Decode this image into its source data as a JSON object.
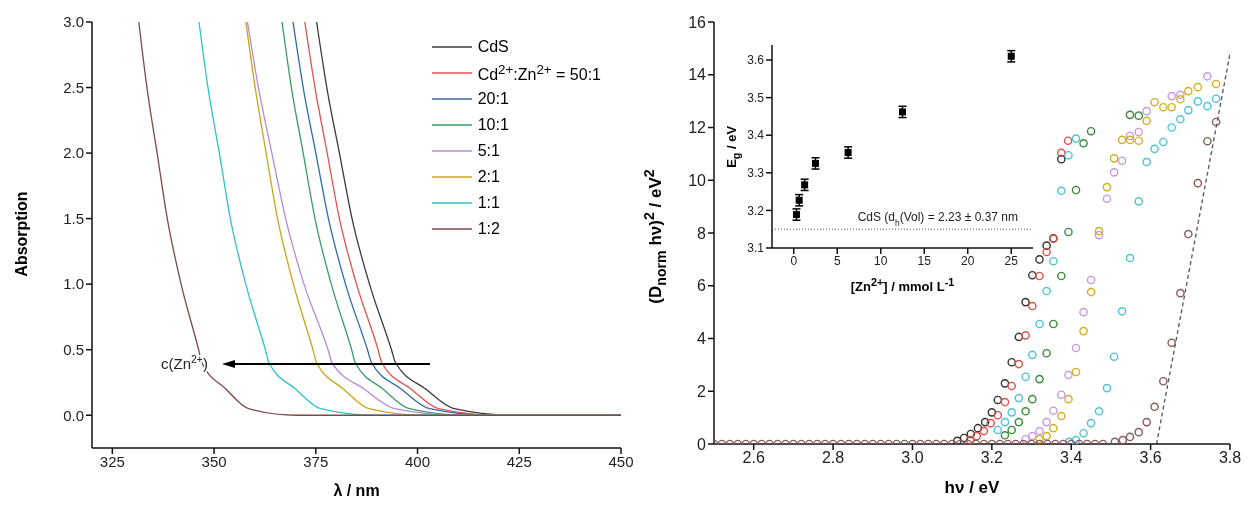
{
  "chart_data": [
    {
      "type": "line",
      "xlabel": "λ / nm",
      "ylabel": "Absorption",
      "xlim": [
        320,
        450
      ],
      "ylim": [
        -0.25,
        3.0
      ],
      "xticks": [
        325,
        350,
        375,
        400,
        425,
        450
      ],
      "yticks": [
        {
          "value": 0,
          "label": "0.0"
        },
        0.5,
        {
          "value": 1,
          "label": "1.0"
        },
        1.5,
        {
          "value": 2,
          "label": "2.0"
        },
        2.5,
        {
          "value": 3,
          "label": "3.0"
        }
      ],
      "legend": "top right",
      "annotations": [
        "c(Zn$^{2+}$)"
      ],
      "series": [
        {
          "name": "CdS",
          "color": "#3a3a3a",
          "x": [
            375.2,
            377.7,
            380.8,
            383.9,
            388.2,
            393.6,
            394.6,
            402.0,
            409.0,
            423.7,
            450
          ],
          "values": [
            3,
            2.5,
            2,
            1.5,
            1,
            0.5,
            0.4,
            0.2,
            0.05,
            0,
            0
          ]
        },
        {
          "name": "Cd$^{2+}$:Zn$^{2+}$ = 50:1",
          "color": "#e0524f",
          "x": [
            372.3,
            374.8,
            377.8,
            380.8,
            385.0,
            390.3,
            391.2,
            398.4,
            405.2,
            419.6,
            450
          ],
          "values": [
            3,
            2.5,
            2,
            1.5,
            1,
            0.5,
            0.4,
            0.2,
            0.05,
            0,
            0
          ]
        },
        {
          "name": "20:1",
          "color": "#2e6aa8",
          "x": [
            369.4,
            371.9,
            375.0,
            378.1,
            382.3,
            387.7,
            388.7,
            396.0,
            403.0,
            417.7,
            450
          ],
          "values": [
            3,
            2.5,
            2,
            1.5,
            1,
            0.5,
            0.4,
            0.2,
            0.05,
            0,
            0
          ]
        },
        {
          "name": "10:1",
          "color": "#3a9a6a",
          "x": [
            366.7,
            369.0,
            371.9,
            374.8,
            378.8,
            383.8,
            384.7,
            391.5,
            398.0,
            411.7,
            450
          ],
          "values": [
            3,
            2.5,
            2,
            1.5,
            1,
            0.5,
            0.4,
            0.2,
            0.05,
            0,
            0
          ]
        },
        {
          "name": "5:1",
          "color": "#b58bd8",
          "x": [
            358.2,
            360.9,
            364.2,
            367.6,
            372.1,
            378.0,
            379.0,
            386.9,
            394.4,
            410.2,
            450
          ],
          "values": [
            3,
            2.5,
            2,
            1.5,
            1,
            0.5,
            0.4,
            0.2,
            0.05,
            0,
            0
          ]
        },
        {
          "name": "2:1",
          "color": "#c9a516",
          "x": [
            357.8,
            360.1,
            362.8,
            365.6,
            369.5,
            374.3,
            375.2,
            381.8,
            388.1,
            401.3,
            450
          ],
          "values": [
            3,
            2.5,
            2,
            1.5,
            1,
            0.5,
            0.4,
            0.2,
            0.05,
            0,
            0
          ]
        },
        {
          "name": "1:1",
          "color": "#2cc3c8",
          "x": [
            346.3,
            348.5,
            351.3,
            354.0,
            357.8,
            362.6,
            363.5,
            370.0,
            376.2,
            389.3,
            450
          ],
          "values": [
            3,
            2.5,
            2,
            1.5,
            1,
            0.5,
            0.4,
            0.2,
            0.05,
            0,
            0
          ]
        },
        {
          "name": "1:2",
          "color": "#7a4a4a",
          "x": [
            331.5,
            333.5,
            336.0,
            338.5,
            341.9,
            346.2,
            347.0,
            352.9,
            358.5,
            370.3,
            450
          ],
          "values": [
            3,
            2.5,
            2,
            1.5,
            1,
            0.5,
            0.4,
            0.2,
            0.05,
            0,
            0
          ]
        }
      ]
    },
    {
      "type": "scatter",
      "xlabel": "hν / eV",
      "ylabel": "(D$_{norm}$ hν)$^{2}$ / eV$^{2}$",
      "xlim": [
        2.5,
        3.8
      ],
      "ylim": [
        0,
        16
      ],
      "xticks": [
        2.6,
        2.8,
        {
          "value": 3,
          "label": "3.0"
        },
        3.2,
        3.4,
        3.6,
        3.8
      ],
      "yticks": [
        0,
        2,
        4,
        6,
        8,
        10,
        12,
        14,
        16
      ],
      "marker": "circle",
      "series": [
        {
          "color": "#333333",
          "x": [
            3.113,
            3.13,
            3.147,
            3.165,
            3.183,
            3.2,
            3.215,
            3.233,
            3.25,
            3.268,
            3.285,
            3.302,
            3.32,
            3.338,
            3.355,
            3.375
          ],
          "values": [
            0.12,
            0.23,
            0.38,
            0.6,
            0.83,
            1.2,
            1.67,
            2.3,
            3.1,
            4.06,
            5.38,
            6.4,
            7.0,
            7.52,
            7.8,
            10.8
          ]
        },
        {
          "color": "#d9534f",
          "x": [
            3.145,
            3.162,
            3.18,
            3.197,
            3.215,
            3.233,
            3.25,
            3.268,
            3.285,
            3.302,
            3.32,
            3.338,
            3.355,
            3.375,
            3.392
          ],
          "values": [
            0.15,
            0.3,
            0.49,
            0.79,
            1.09,
            1.59,
            2.2,
            3.03,
            4.12,
            5.23,
            6.37,
            7.28,
            7.78,
            11.04,
            11.5
          ]
        },
        {
          "color": "#4fc3d6",
          "x": [
            3.215,
            3.233,
            3.25,
            3.268,
            3.285,
            3.302,
            3.32,
            3.338,
            3.355,
            3.375,
            3.393,
            3.412
          ],
          "values": [
            0.53,
            0.83,
            1.2,
            1.74,
            2.55,
            3.38,
            4.55,
            5.8,
            6.93,
            9.6,
            10.95,
            11.58
          ]
        },
        {
          "color": "#3a8a3a",
          "x": [
            3.233,
            3.25,
            3.268,
            3.285,
            3.302,
            3.32,
            3.338,
            3.355,
            3.375,
            3.393,
            3.412,
            3.431,
            3.45,
            3.548,
            3.57
          ],
          "values": [
            0.33,
            0.53,
            0.83,
            1.24,
            1.7,
            2.46,
            3.44,
            4.55,
            6.37,
            8.04,
            9.63,
            11.4,
            11.86,
            12.48,
            12.45
          ]
        },
        {
          "color": "#c79ae0",
          "x": [
            3.285,
            3.302,
            3.32,
            3.338,
            3.355,
            3.375,
            3.393,
            3.412,
            3.431,
            3.45,
            3.47,
            3.49,
            3.508,
            3.528,
            3.548,
            3.57,
            3.59,
            3.653,
            3.675,
            3.743
          ],
          "values": [
            0.18,
            0.3,
            0.49,
            0.83,
            1.26,
            1.87,
            2.62,
            3.64,
            5.0,
            6.22,
            7.92,
            9.3,
            10.3,
            10.74,
            11.68,
            11.83,
            12.62,
            13.19,
            13.24,
            13.94
          ]
        },
        {
          "color": "#d4b020",
          "x": [
            3.32,
            3.338,
            3.355,
            3.375,
            3.393,
            3.412,
            3.431,
            3.45,
            3.47,
            3.49,
            3.508,
            3.528,
            3.548,
            3.57,
            3.59,
            3.61,
            3.632,
            3.653,
            3.675,
            3.695,
            3.719,
            3.765
          ],
          "values": [
            0.18,
            0.3,
            0.6,
            1.06,
            1.7,
            2.73,
            4.28,
            5.76,
            8.07,
            9.74,
            10.83,
            11.53,
            11.53,
            11.5,
            12.25,
            12.96,
            12.77,
            12.77,
            13.07,
            13.38,
            13.53,
            13.65
          ]
        },
        {
          "color": "#4fc3d6",
          "x": [
            3.395,
            3.412,
            3.431,
            3.45,
            3.47,
            3.49,
            3.508,
            3.528,
            3.548,
            3.57,
            3.59,
            3.61,
            3.632,
            3.653,
            3.675,
            3.695,
            3.719,
            3.743,
            3.765
          ],
          "values": [
            0.08,
            0.15,
            0.41,
            0.79,
            1.24,
            2.12,
            3.31,
            5.03,
            7.05,
            9.2,
            10.69,
            11.19,
            11.45,
            12.0,
            12.31,
            12.66,
            12.99,
            12.81,
            13.09
          ]
        },
        {
          "color": "#8a5a5a",
          "x": [
            2.5,
            2.52,
            2.54,
            2.56,
            2.58,
            2.6,
            2.62,
            2.64,
            2.66,
            2.68,
            2.7,
            2.72,
            2.74,
            2.76,
            2.78,
            2.8,
            2.82,
            2.84,
            2.86,
            2.88,
            2.9,
            2.92,
            2.94,
            2.96,
            2.98,
            3.0,
            3.02,
            3.04,
            3.06,
            3.08,
            3.1,
            3.12,
            3.14,
            3.16,
            3.18,
            3.2,
            3.22,
            3.24,
            3.26,
            3.28,
            3.3,
            3.32,
            3.34,
            3.36,
            3.38,
            3.4,
            3.42,
            3.44,
            3.46,
            3.48,
            3.51,
            3.53,
            3.548,
            3.57,
            3.59,
            3.61,
            3.632,
            3.653,
            3.675,
            3.695,
            3.719,
            3.743,
            3.765
          ],
          "values": [
            0,
            0,
            0,
            0,
            0,
            0,
            0,
            0,
            0,
            0,
            0,
            0,
            0,
            0,
            0,
            0,
            0,
            0,
            0,
            0,
            0,
            0,
            0,
            0,
            0,
            0,
            0,
            0,
            0,
            0,
            0,
            0,
            0,
            0,
            0,
            0,
            0,
            0,
            0,
            0,
            0,
            0,
            0,
            0,
            0,
            0,
            0,
            0,
            0,
            0,
            0.08,
            0.15,
            0.27,
            0.45,
            0.83,
            1.41,
            2.38,
            3.84,
            5.72,
            7.96,
            9.89,
            11.48,
            12.21
          ]
        },
        {
          "type": "line",
          "line_style": "dashed",
          "marker": "none",
          "color": "#555555",
          "x": [
            3.615,
            3.8
          ],
          "values": [
            0,
            14.8
          ]
        }
      ]
    },
    {
      "type": "scatter",
      "xlabel": "[Zn$^{2+}$] / mmol L$^{-1}$",
      "ylabel": "E$_{g}$ / eV",
      "xlim": [
        -2.5,
        27.5
      ],
      "ylim": [
        3.1,
        3.64
      ],
      "xticks": [
        0,
        5,
        10,
        15,
        20,
        25
      ],
      "yticks": [
        3.1,
        3.2,
        3.3,
        3.4,
        3.5,
        3.6
      ],
      "marker": "square",
      "color": "#000000",
      "x": [
        0.3125,
        0.625,
        1.25,
        2.5,
        6.25,
        12.5,
        25
      ],
      "values": [
        3.189,
        3.227,
        3.268,
        3.325,
        3.354,
        3.462,
        3.61
      ],
      "errors": [
        0.015,
        0.015,
        0.015,
        0.015,
        0.015,
        0.015,
        0.015
      ],
      "annotations": [
        "CdS (d$_{h}$(Vol) = 2.23 ± 0.37 nm"
      ],
      "ref_lines": [
        {
          "axis": "y",
          "value": 3.15,
          "line_style": "dotted",
          "color": "#555555"
        }
      ]
    }
  ]
}
